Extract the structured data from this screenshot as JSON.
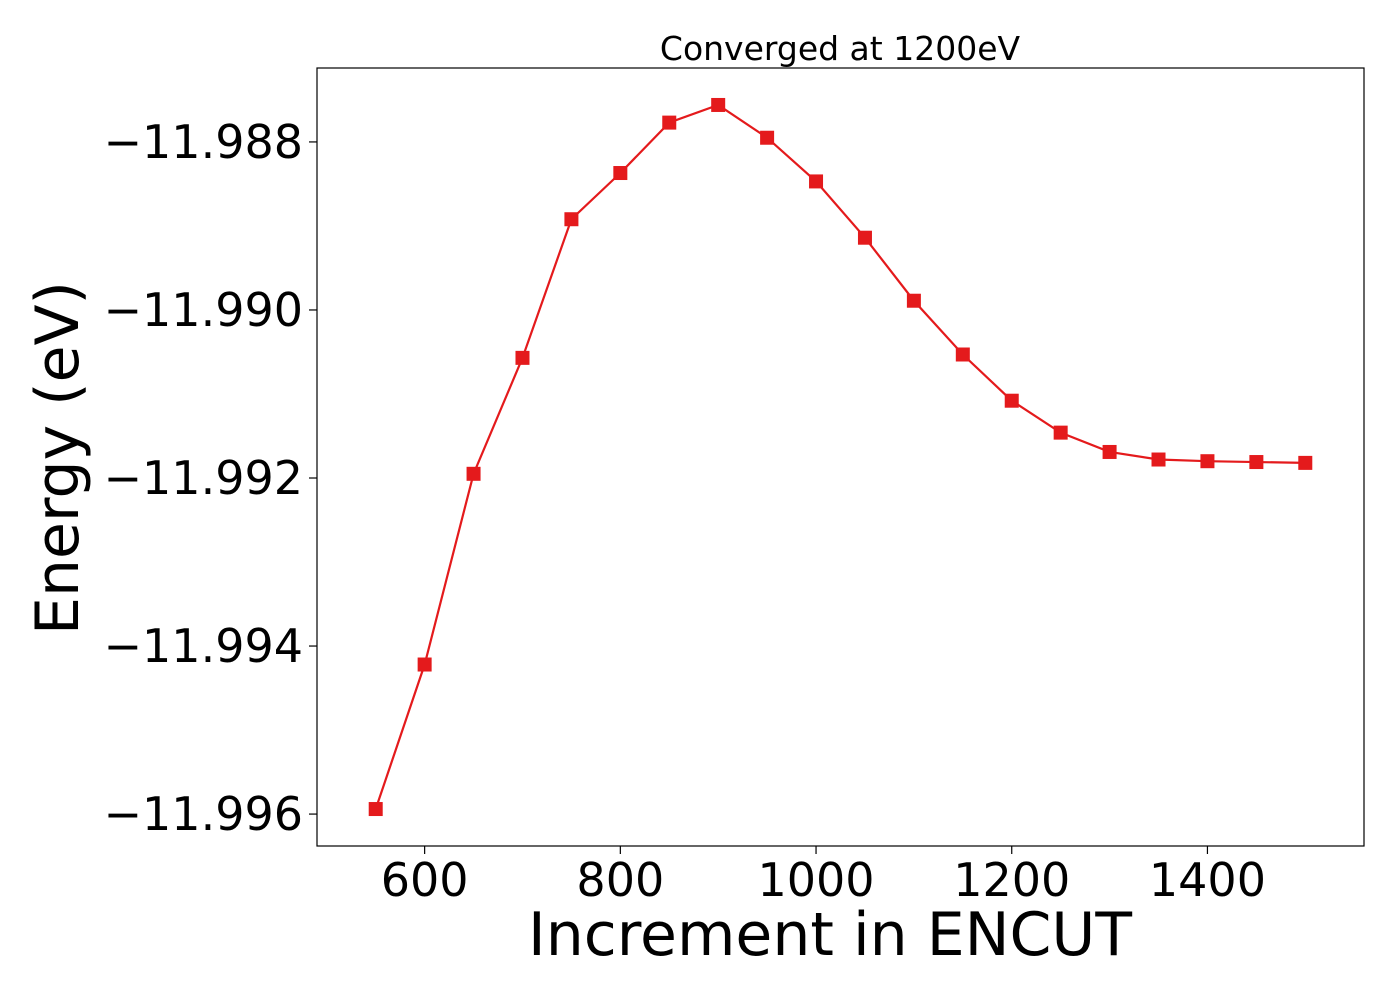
{
  "chart_data": {
    "type": "line",
    "title": "Converged at 1200eV",
    "xlabel": "Increment in ENCUT",
    "ylabel": "Energy (eV)",
    "xlim": [
      490,
      1560
    ],
    "ylim": [
      -11.99638,
      -11.98712
    ],
    "x_ticks": [
      600,
      800,
      1000,
      1200,
      1400
    ],
    "x_tick_labels": [
      "600",
      "800",
      "1000",
      "1200",
      "1400"
    ],
    "y_ticks": [
      -11.988,
      -11.99,
      -11.992,
      -11.994,
      -11.996
    ],
    "y_tick_labels": [
      "−11.988",
      "−11.990",
      "−11.992",
      "−11.994",
      "−11.996"
    ],
    "grid": false,
    "series": [
      {
        "color": "#e41a1c",
        "marker": "square",
        "x": [
          550,
          600,
          650,
          700,
          750,
          800,
          850,
          900,
          950,
          1000,
          1050,
          1100,
          1150,
          1200,
          1250,
          1300,
          1350,
          1400,
          1450,
          1500
        ],
        "y": [
          -11.99594,
          -11.99422,
          -11.99195,
          -11.99057,
          -11.98892,
          -11.98837,
          -11.98777,
          -11.98756,
          -11.98795,
          -11.98847,
          -11.98914,
          -11.98989,
          -11.99053,
          -11.99108,
          -11.99146,
          -11.99169,
          -11.99178,
          -11.9918,
          -11.99181,
          -11.99182
        ]
      }
    ]
  }
}
